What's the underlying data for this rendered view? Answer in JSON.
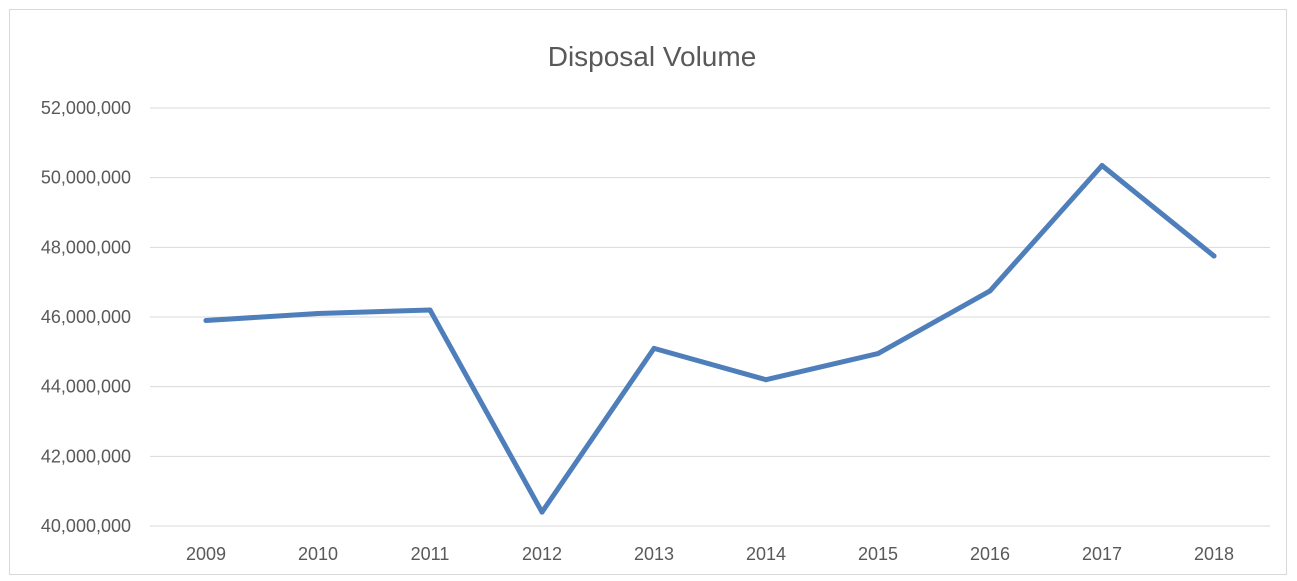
{
  "chart_data": {
    "type": "line",
    "title": "Disposal Volume",
    "xlabel": "",
    "ylabel": "",
    "categories": [
      "2009",
      "2010",
      "2011",
      "2012",
      "2013",
      "2014",
      "2015",
      "2016",
      "2017",
      "2018"
    ],
    "series": [
      {
        "values": [
          45900000,
          46100000,
          46200000,
          40400000,
          45100000,
          44200000,
          44950000,
          46750000,
          50350000,
          47750000
        ],
        "color": "#4f7fbb"
      }
    ],
    "ylim": [
      40000000,
      52000000
    ],
    "yticks": [
      40000000,
      42000000,
      44000000,
      46000000,
      48000000,
      50000000,
      52000000
    ],
    "ytick_labels": [
      "40,000,000",
      "42,000,000",
      "44,000,000",
      "46,000,000",
      "48,000,000",
      "50,000,000",
      "52,000,000"
    ],
    "grid": true,
    "legend": "none"
  }
}
